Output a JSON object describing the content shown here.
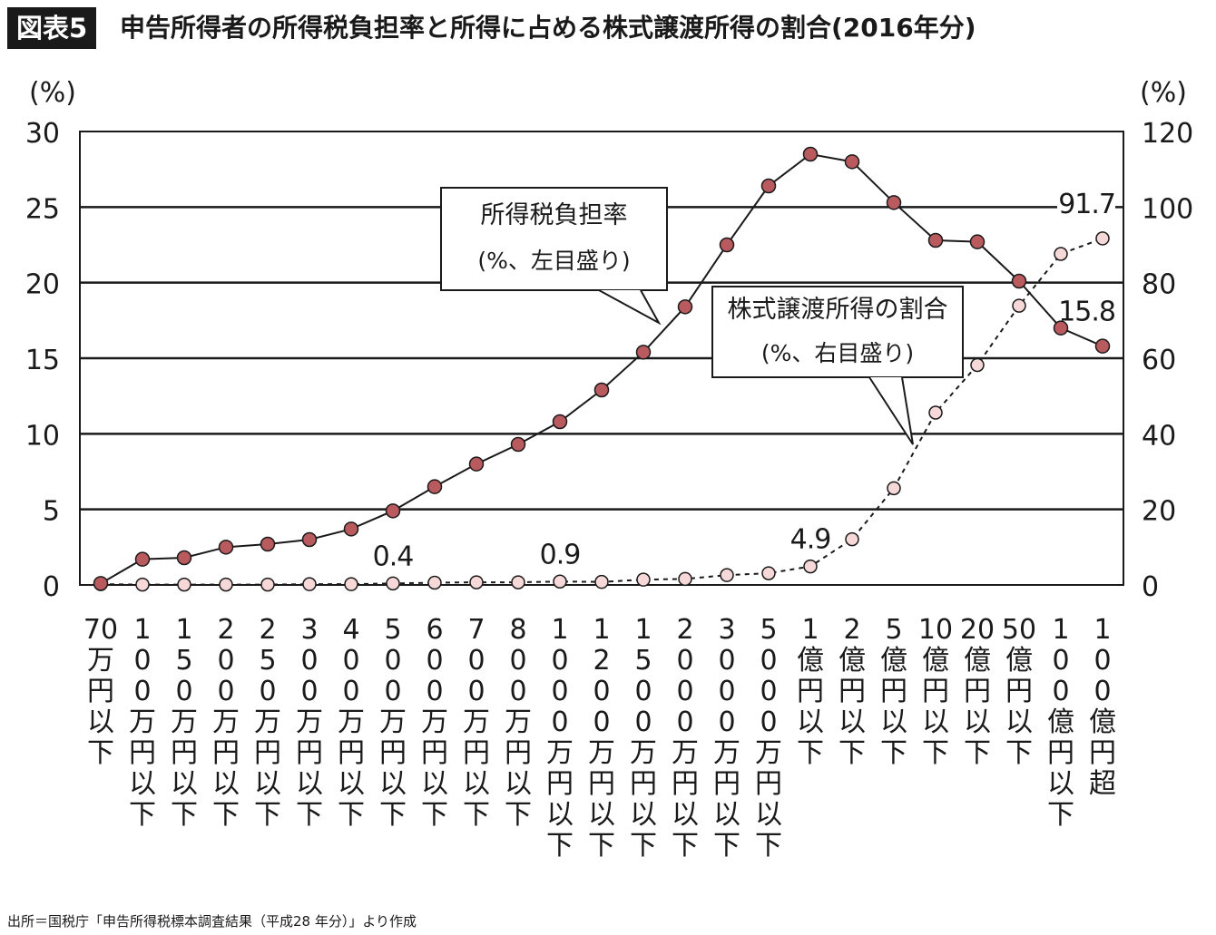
{
  "header": {
    "badge": "図表5",
    "title": "申告所得者の所得税負担率と所得に占める株式譲渡所得の割合(2016年分)"
  },
  "source": "出所＝国税庁「申告所得税標本調査結果（平成28 年分）」より作成",
  "colors": {
    "tax_marker": "#b85a5e",
    "share_marker": "#f6d8d8",
    "line": "#1a1a1a"
  },
  "chart_data": {
    "type": "line",
    "left_unit": "(%)",
    "right_unit": "(%)",
    "left_ylim": [
      0,
      30
    ],
    "left_ticks": [
      0,
      5,
      10,
      15,
      20,
      25,
      30
    ],
    "right_ylim": [
      0,
      120
    ],
    "right_ticks": [
      0,
      20,
      40,
      60,
      80,
      100,
      120
    ],
    "categories": [
      "70万円以下",
      "100万円以下",
      "150万円以下",
      "200万円以下",
      "250万円以下",
      "300万円以下",
      "400万円以下",
      "500万円以下",
      "600万円以下",
      "700万円以下",
      "800万円以下",
      "1000万円以下",
      "1200万円以下",
      "1500万円以下",
      "2000万円以下",
      "3000万円以下",
      "5000万円以下",
      "1億円以下",
      "2億円以下",
      "5億円以下",
      "10億円以下",
      "20億円以下",
      "50億円以下",
      "100億円以下",
      "100億円超"
    ],
    "tick_label_lines": [
      [
        "70",
        "万",
        "円",
        "以",
        "下"
      ],
      [
        "1",
        "0",
        "0",
        "万",
        "円",
        "以",
        "下"
      ],
      [
        "1",
        "5",
        "0",
        "万",
        "円",
        "以",
        "下"
      ],
      [
        "2",
        "0",
        "0",
        "万",
        "円",
        "以",
        "下"
      ],
      [
        "2",
        "5",
        "0",
        "万",
        "円",
        "以",
        "下"
      ],
      [
        "3",
        "0",
        "0",
        "万",
        "円",
        "以",
        "下"
      ],
      [
        "4",
        "0",
        "0",
        "万",
        "円",
        "以",
        "下"
      ],
      [
        "5",
        "0",
        "0",
        "万",
        "円",
        "以",
        "下"
      ],
      [
        "6",
        "0",
        "0",
        "万",
        "円",
        "以",
        "下"
      ],
      [
        "7",
        "0",
        "0",
        "万",
        "円",
        "以",
        "下"
      ],
      [
        "8",
        "0",
        "0",
        "万",
        "円",
        "以",
        "下"
      ],
      [
        "1",
        "0",
        "0",
        "0",
        "万",
        "円",
        "以",
        "下"
      ],
      [
        "1",
        "2",
        "0",
        "0",
        "万",
        "円",
        "以",
        "下"
      ],
      [
        "1",
        "5",
        "0",
        "0",
        "万",
        "円",
        "以",
        "下"
      ],
      [
        "2",
        "0",
        "0",
        "0",
        "万",
        "円",
        "以",
        "下"
      ],
      [
        "3",
        "0",
        "0",
        "0",
        "万",
        "円",
        "以",
        "下"
      ],
      [
        "5",
        "0",
        "0",
        "0",
        "万",
        "円",
        "以",
        "下"
      ],
      [
        "1",
        "億",
        "円",
        "以",
        "下"
      ],
      [
        "2",
        "億",
        "円",
        "以",
        "下"
      ],
      [
        "5",
        "億",
        "円",
        "以",
        "下"
      ],
      [
        "10",
        "億",
        "円",
        "以",
        "下"
      ],
      [
        "20",
        "億",
        "円",
        "以",
        "下"
      ],
      [
        "50",
        "億",
        "円",
        "以",
        "下"
      ],
      [
        "1",
        "0",
        "0",
        "億",
        "円",
        "以",
        "下"
      ],
      [
        "1",
        "0",
        "0",
        "億",
        "円",
        "超"
      ]
    ],
    "series": [
      {
        "name": "所得税負担率",
        "axis": "left",
        "style": "solid",
        "values": [
          0.1,
          1.7,
          1.8,
          2.5,
          2.7,
          3.0,
          3.7,
          4.9,
          6.5,
          8.0,
          9.3,
          10.8,
          12.9,
          15.4,
          18.4,
          22.5,
          26.4,
          28.5,
          28.0,
          25.3,
          22.8,
          22.7,
          20.1,
          17.0,
          15.8
        ]
      },
      {
        "name": "株式譲渡所得の割合",
        "axis": "right",
        "style": "dashed",
        "values": [
          0.2,
          0.1,
          0.1,
          0.1,
          0.1,
          0.2,
          0.2,
          0.4,
          0.6,
          0.7,
          0.7,
          0.9,
          0.8,
          1.4,
          1.6,
          2.6,
          3.1,
          4.9,
          12.1,
          25.6,
          45.6,
          58.2,
          73.9,
          87.6,
          91.7
        ]
      }
    ],
    "data_labels": [
      {
        "series": 1,
        "index": 7,
        "text": "0.4"
      },
      {
        "series": 1,
        "index": 11,
        "text": "0.9"
      },
      {
        "series": 1,
        "index": 17,
        "text": "4.9"
      },
      {
        "series": 1,
        "index": 24,
        "text": "91.7"
      },
      {
        "series": 0,
        "index": 24,
        "text": "15.8"
      }
    ],
    "callouts": [
      {
        "series": 0,
        "lines": [
          "所得税負担率",
          "(%、左目盛り)"
        ]
      },
      {
        "series": 1,
        "lines": [
          "株式譲渡所得の割合",
          "(%、右目盛り)"
        ]
      }
    ]
  }
}
